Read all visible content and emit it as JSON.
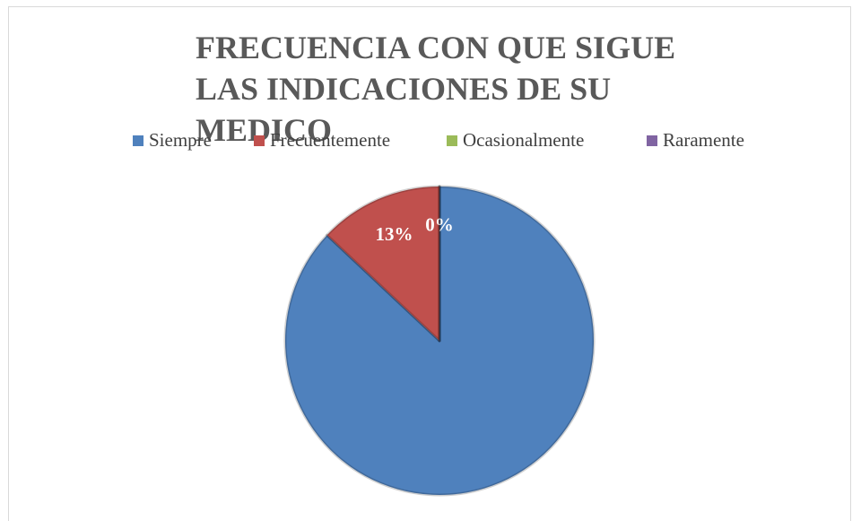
{
  "chart_data": {
    "type": "pie",
    "title": "FRECUENCIA CON QUE SIGUE LAS INDICACIONES DE SU MEDICO",
    "categories": [
      "Siempre",
      "Frecuentemente",
      "Ocasionalmente",
      "Raramente"
    ],
    "values": [
      87,
      13,
      0,
      0
    ],
    "value_labels": [
      null,
      "13%",
      "0%",
      null
    ],
    "colors": [
      "#4f81bd",
      "#c0504d",
      "#9bbb59",
      "#8064a2"
    ],
    "legend": "top"
  }
}
